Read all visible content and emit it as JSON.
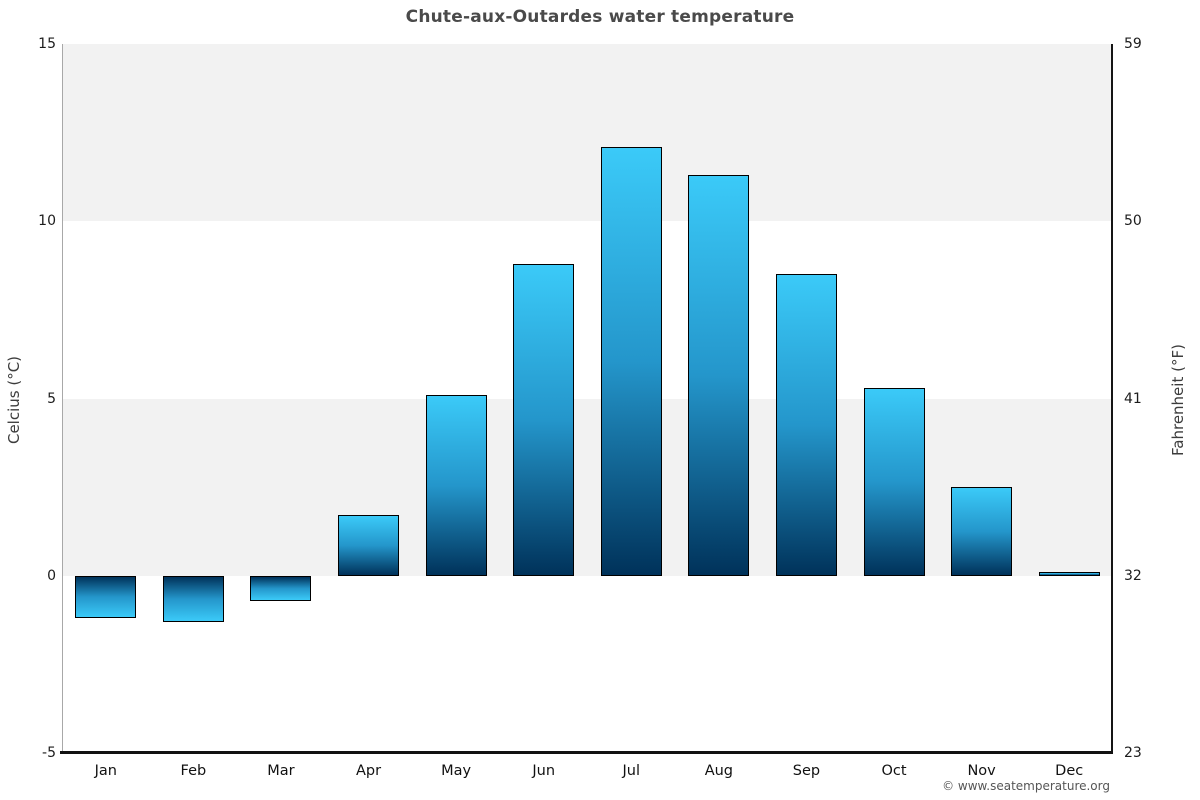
{
  "title": "Chute-aux-Outardes water temperature",
  "footer": "© www.seatemperature.org",
  "axes": {
    "left_title": "Celcius (°C)",
    "right_title": "Fahrenheit (°F)"
  },
  "chart_data": {
    "type": "bar",
    "title": "Chute-aux-Outardes water temperature",
    "categories": [
      "Jan",
      "Feb",
      "Mar",
      "Apr",
      "May",
      "Jun",
      "Jul",
      "Aug",
      "Sep",
      "Oct",
      "Nov",
      "Dec"
    ],
    "values": [
      -1.2,
      -1.3,
      -0.7,
      1.7,
      5.1,
      8.8,
      12.1,
      11.3,
      8.5,
      5.3,
      2.5,
      0.1
    ],
    "ylabel_left": "Celcius (°C)",
    "ylabel_right": "Fahrenheit (°F)",
    "ylim": [
      -5,
      15
    ],
    "celsius_ticks": [
      15,
      10,
      5,
      0,
      -5
    ],
    "fahrenheit_ticks": [
      59,
      50,
      41,
      32,
      23
    ],
    "gray_bands_celsius": [
      [
        15,
        10
      ],
      [
        5,
        0
      ]
    ],
    "grid": "banded",
    "legend": "none",
    "colors": {
      "bar_tip": "#3bcaf8",
      "bar_mid": "#2496cb",
      "bar_base": "#00325a",
      "bar_border": "#000000",
      "band": "#f2f2f2"
    }
  }
}
